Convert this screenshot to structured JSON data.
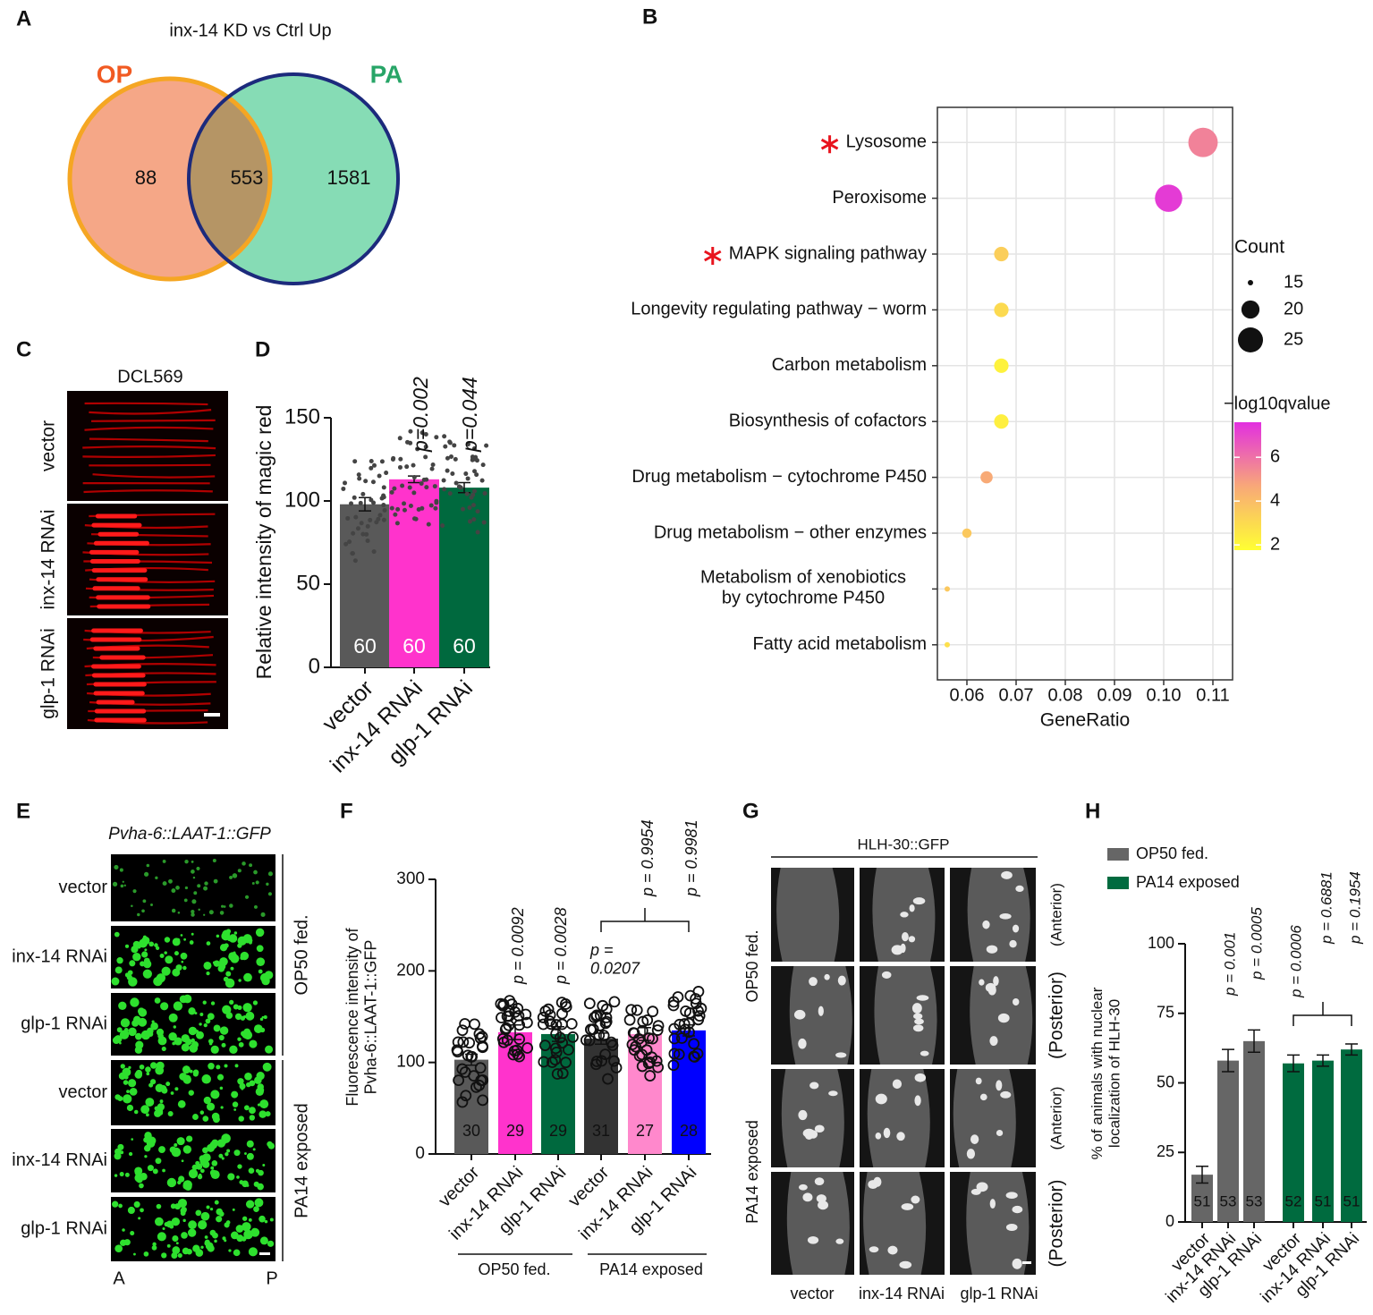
{
  "panel_labels": [
    "A",
    "B",
    "C",
    "D",
    "E",
    "F",
    "G",
    "H"
  ],
  "chart_data": [
    {
      "type": "venn",
      "title": "inx-14 KD vs Ctrl Up",
      "sets": [
        {
          "name": "OP",
          "color": "#f15a22"
        },
        {
          "name": "PA",
          "color": "#27a567"
        }
      ],
      "values": [
        88,
        553,
        1581
      ]
    },
    {
      "type": "dot",
      "categories": [
        "Lysosome",
        "Peroxisome",
        "MAPK signaling pathway",
        "Longevity regulating pathway − worm",
        "Carbon metabolism",
        "Biosynthesis of cofactors",
        "Drug metabolism − cytochrome P450",
        "Drug metabolism − other enzymes",
        "Metabolism of xenobiotics\nby cytochrome P450",
        "Fatty acid metabolism"
      ],
      "x": [
        0.108,
        0.101,
        0.067,
        0.067,
        0.067,
        0.067,
        0.064,
        0.06,
        0.056,
        0.056
      ],
      "sizes": [
        29,
        27,
        18,
        18,
        18,
        18,
        17,
        16,
        15,
        15
      ],
      "color_values": [
        5.6,
        7.3,
        3.4,
        3.0,
        2.2,
        2.3,
        4.6,
        3.6,
        3.6,
        2.8
      ],
      "starred": [
        true,
        false,
        true,
        false,
        false,
        false,
        false,
        false,
        false,
        false
      ],
      "xlim": [
        0.054,
        0.114
      ],
      "xticks": [
        0.06,
        0.07,
        0.08,
        0.09,
        {
          "value": 0.1,
          "label": "0.10"
        },
        0.11
      ],
      "xlabel": "GeneRatio",
      "size_title": "Count",
      "size_ticks": [
        15,
        20,
        25
      ],
      "color_title": "−log10qvalue",
      "color_ticks": [
        2,
        4,
        6
      ],
      "colorlim": [
        1.76,
        7.6
      ],
      "colorscale": [
        "#ffff33",
        "#f8a878",
        "#e22fe0"
      ],
      "grid": true
    },
    {
      "type": "bar",
      "categories": [
        "vector",
        "inx-14 RNAi",
        "glp-1 RNAi"
      ],
      "values": [
        98,
        113,
        108
      ],
      "errors": [
        4,
        2,
        3
      ],
      "colors": [
        "#595959",
        "#ff33cc",
        "#00693e"
      ],
      "n": [
        60,
        60,
        60
      ],
      "p_labels": [
        null,
        "p=0.002",
        "p=0.044"
      ],
      "ylabel": "Relative intensity of magic red",
      "ylim": [
        0,
        150
      ],
      "yticks": [
        0,
        50,
        100,
        150
      ]
    },
    {
      "type": "bar",
      "categories": [
        "vector",
        "inx-14 RNAi",
        "glp-1 RNAi",
        "vector",
        "inx-14 RNAi",
        "glp-1 RNAi"
      ],
      "values": [
        103,
        133,
        131,
        126,
        131,
        135
      ],
      "errors": [
        6,
        8,
        8,
        6,
        7,
        6
      ],
      "colors": [
        "#595959",
        "#ff33cc",
        "#00693e",
        "#333333",
        "#ff88cc",
        "#0000ff"
      ],
      "n": [
        30,
        29,
        29,
        31,
        27,
        28
      ],
      "p_labels": [
        null,
        "p = 0.0092",
        "p = 0.0028",
        "p =\n0.0207",
        "p = 0.9954",
        "p = 0.9981"
      ],
      "groups": [
        "OP50 fed.",
        "PA14 exposed"
      ],
      "ylabel": "Fluorescence intensity of\nPvha-6::LAAT-1::GFP",
      "ylim": [
        0,
        300
      ],
      "yticks": [
        0,
        100,
        200,
        300
      ]
    },
    {
      "type": "bar",
      "categories": [
        "vector",
        "inx-14 RNAi",
        "glp-1 RNAi",
        "vector",
        "inx-14 RNAi",
        "glp-1 RNAi"
      ],
      "series": [
        {
          "name": "OP50 fed.",
          "color": "#666666",
          "values": [
            17,
            58,
            65,
            null,
            null,
            null
          ],
          "errors": [
            3,
            4,
            4,
            null,
            null,
            null
          ]
        },
        {
          "name": "PA14 exposed",
          "color": "#006b3f",
          "values": [
            null,
            null,
            null,
            57,
            58,
            62
          ],
          "errors": [
            null,
            null,
            null,
            3,
            2,
            2
          ]
        }
      ],
      "n": [
        51,
        53,
        53,
        52,
        51,
        51
      ],
      "p_labels": [
        null,
        "p = 0.001",
        "p = 0.0005",
        "p = 0.0006",
        "p = 0.6881",
        "p = 0.1954"
      ],
      "ylabel": "% of animals with nuclear\nlocalization of HLH-30",
      "ylim": [
        0,
        100
      ],
      "yticks": [
        0,
        25,
        50,
        75,
        100
      ]
    }
  ],
  "images": {
    "C": {
      "title": "DCL569",
      "rows": [
        "vector",
        "inx-14 RNAi",
        "glp-1 RNAi"
      ]
    },
    "E": {
      "title": "Pvha-6::LAAT-1::GFP",
      "rows": [
        "vector",
        "inx-14 RNAi",
        "glp-1 RNAi",
        "vector",
        "inx-14 RNAi",
        "glp-1 RNAi"
      ],
      "groups": [
        "OP50 fed.",
        "PA14 exposed"
      ],
      "ends": [
        "A",
        "P"
      ]
    },
    "G": {
      "title": "HLH-30::GFP",
      "groups": [
        "OP50 fed.",
        "PA14 exposed"
      ],
      "sides": [
        "(Anterior)",
        "(Posterior)",
        "(Anterior)",
        "(Posterior)"
      ],
      "columns": [
        "vector",
        "inx-14 RNAi",
        "glp-1 RNAi"
      ]
    }
  }
}
